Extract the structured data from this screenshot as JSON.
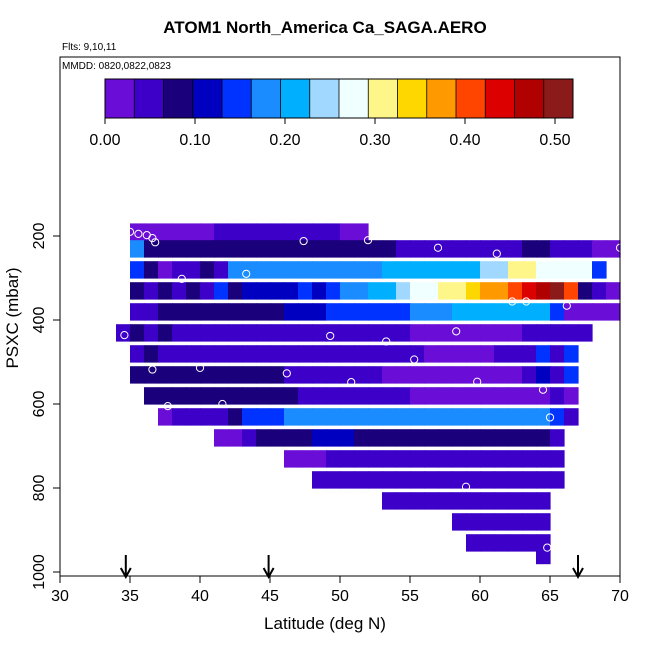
{
  "chart_data": {
    "type": "heatmap",
    "title": "ATOM1 North_America Ca_SAGA.AERO",
    "notes": [
      "Flts: 9,10,11",
      "MMDD: 0820,0822,0823"
    ],
    "xlabel": "Latitude (deg N)",
    "ylabel": "PSXC (mbar)",
    "xlim": [
      30,
      70
    ],
    "ylim": [
      1000,
      0
    ],
    "xticks": [
      30,
      35,
      40,
      45,
      50,
      55,
      60,
      65,
      70
    ],
    "yticks": [
      200,
      400,
      600,
      800,
      1000
    ],
    "colorbar": {
      "range": [
        0,
        0.52
      ],
      "ticks": [
        0.0,
        0.1,
        0.2,
        0.3,
        0.4,
        0.5
      ],
      "tick_labels": [
        "0.00",
        "0.10",
        "0.20",
        "0.30",
        "0.40",
        "0.50"
      ],
      "colors": [
        "#6a0dd6",
        "#3d00c8",
        "#1a007a",
        "#0000c0",
        "#0033ff",
        "#1a8cff",
        "#00b0ff",
        "#a0d8ff",
        "#f0ffff",
        "#fff68a",
        "#ffd700",
        "#ff9900",
        "#ff4500",
        "#dd0000",
        "#b00000",
        "#8b1a1a"
      ]
    },
    "flight_marker_latitudes": [
      34.7,
      44.9,
      67.0
    ],
    "bin": {
      "lat_width": 1.0,
      "p_height": 40
    },
    "rows": [
      {
        "p": 190,
        "lat": [
          35,
          52
        ],
        "v": [
          0.02,
          0.02,
          0.03,
          0.03,
          0.03,
          0.03,
          0.04,
          0.04,
          0.04,
          0.04,
          0.04,
          0.04,
          0.05,
          0.04,
          0.04,
          0.03,
          0.03
        ]
      },
      {
        "p": 230,
        "lat": [
          35,
          70
        ],
        "v": [
          0.17,
          0.07,
          0.07,
          0.07,
          0.07,
          0.07,
          0.07,
          0.07,
          0.07,
          0.07,
          0.07,
          0.07,
          0.07,
          0.07,
          0.07,
          0.07,
          0.07,
          0.07,
          0.07,
          0.06,
          0.06,
          0.06,
          0.06,
          0.06,
          0.06,
          0.06,
          0.06,
          0.06,
          0.07,
          0.07,
          0.06,
          0.05,
          0.04,
          0.03,
          0.03
        ]
      },
      {
        "p": 280,
        "lat": [
          35,
          68
        ],
        "v": [
          0.14,
          0.07,
          0.02,
          0.06,
          0.05,
          0.07,
          0.05,
          0.17,
          0.17,
          0.18,
          0.18,
          0.18,
          0.18,
          0.18,
          0.19,
          0.19,
          0.19,
          0.19,
          0.2,
          0.21,
          0.21,
          0.21,
          0.21,
          0.21,
          0.22,
          0.23,
          0.23,
          0.3,
          0.3,
          0.29,
          0.28,
          0.28,
          0.28,
          0.14
        ]
      },
      {
        "p": 330,
        "lat": [
          35,
          69
        ],
        "v": [
          0.08,
          0.05,
          0.07,
          0.06,
          0.07,
          0.05,
          0.13,
          0.08,
          0.11,
          0.12,
          0.1,
          0.1,
          0.15,
          0.12,
          0.14,
          0.17,
          0.19,
          0.2,
          0.22,
          0.24,
          0.26,
          0.29,
          0.3,
          0.32,
          0.34,
          0.36,
          0.38,
          0.42,
          0.43,
          0.47,
          0.49,
          0.4,
          0.07,
          0.04,
          0.03
        ]
      },
      {
        "p": 380,
        "lat": [
          35,
          69
        ],
        "v": [
          0.06,
          0.06,
          0.07,
          0.07,
          0.07,
          0.07,
          0.07,
          0.07,
          0.07,
          0.08,
          0.08,
          0.1,
          0.1,
          0.12,
          0.13,
          0.13,
          0.14,
          0.15,
          0.15,
          0.16,
          0.17,
          0.18,
          0.19,
          0.2,
          0.2,
          0.2,
          0.2,
          0.2,
          0.2,
          0.2,
          0.16,
          0.02,
          0.03,
          0.02,
          0.03
        ]
      },
      {
        "p": 430,
        "lat": [
          34,
          68
        ],
        "v": [
          0.04,
          0.07,
          0.06,
          0.07,
          0.06,
          0.06,
          0.06,
          0.06,
          0.06,
          0.06,
          0.05,
          0.05,
          0.05,
          0.05,
          0.05,
          0.04,
          0.04,
          0.04,
          0.04,
          0.04,
          0.04,
          0.03,
          0.03,
          0.03,
          0.03,
          0.03,
          0.03,
          0.03,
          0.03,
          0.04,
          0.04,
          0.06,
          0.06,
          0.06
        ]
      },
      {
        "p": 480,
        "lat": [
          35,
          67
        ],
        "v": [
          0.06,
          0.07,
          0.06,
          0.06,
          0.06,
          0.06,
          0.06,
          0.06,
          0.06,
          0.06,
          0.06,
          0.06,
          0.06,
          0.05,
          0.05,
          0.04,
          0.05,
          0.04,
          0.04,
          0.04,
          0.04,
          0.03,
          0.03,
          0.03,
          0.03,
          0.03,
          0.04,
          0.04,
          0.05,
          0.13,
          0.05,
          0.14
        ]
      },
      {
        "p": 530,
        "lat": [
          35,
          67
        ],
        "v": [
          0.08,
          0.08,
          0.08,
          0.07,
          0.07,
          0.07,
          0.07,
          0.07,
          0.07,
          0.07,
          0.07,
          0.06,
          0.06,
          0.06,
          0.05,
          0.05,
          0.06,
          0.04,
          0.03,
          0.03,
          0.03,
          0.03,
          0.03,
          0.03,
          0.03,
          0.03,
          0.03,
          0.03,
          0.04,
          0.11,
          0.06,
          0.14
        ]
      },
      {
        "p": 580,
        "lat": [
          36,
          67
        ],
        "v": [
          0.07,
          0.08,
          0.08,
          0.08,
          0.07,
          0.07,
          0.07,
          0.07,
          0.07,
          0.07,
          0.07,
          0.06,
          0.06,
          0.05,
          0.05,
          0.05,
          0.04,
          0.04,
          0.04,
          0.03,
          0.03,
          0.03,
          0.03,
          0.03,
          0.03,
          0.03,
          0.03,
          0.03,
          0.03,
          0.06,
          0.03
        ]
      },
      {
        "p": 630,
        "lat": [
          37,
          67
        ],
        "v": [
          0.03,
          0.06,
          0.06,
          0.06,
          0.06,
          0.07,
          0.15,
          0.16,
          0.16,
          0.17,
          0.17,
          0.18,
          0.18,
          0.18,
          0.18,
          0.18,
          0.18,
          0.18,
          0.18,
          0.18,
          0.18,
          0.18,
          0.19,
          0.19,
          0.19,
          0.19,
          0.18,
          0.18,
          0.14,
          0.06
        ]
      },
      {
        "p": 680,
        "lat": [
          41,
          66
        ],
        "v": [
          0.02,
          0.03,
          0.05,
          0.07,
          0.09,
          0.08,
          0.08,
          0.1,
          0.11,
          0.1,
          0.09,
          0.09,
          0.08,
          0.08,
          0.08,
          0.08,
          0.08,
          0.08,
          0.08,
          0.07,
          0.07,
          0.07,
          0.07,
          0.07,
          0.06
        ]
      },
      {
        "p": 730,
        "lat": [
          46,
          66
        ],
        "v": [
          0.02,
          0.02,
          0.02,
          0.05,
          0.06,
          0.06,
          0.06,
          0.06,
          0.06,
          0.06,
          0.06,
          0.06,
          0.06,
          0.06,
          0.06,
          0.06,
          0.06,
          0.06,
          0.06,
          0.06
        ]
      },
      {
        "p": 780,
        "lat": [
          48,
          66
        ],
        "v": [
          0.06,
          0.05,
          0.05,
          0.05,
          0.05,
          0.06,
          0.06,
          0.06,
          0.06,
          0.06,
          0.06,
          0.06,
          0.06,
          0.06,
          0.06,
          0.06,
          0.06,
          0.06
        ]
      },
      {
        "p": 830,
        "lat": [
          53,
          65
        ],
        "v": [
          0.06,
          0.06,
          0.05,
          0.06,
          0.06,
          0.06,
          0.05,
          0.06,
          0.06,
          0.06,
          0.06,
          0.06
        ]
      },
      {
        "p": 880,
        "lat": [
          58,
          65
        ],
        "v": [
          0.06,
          0.06,
          0.06,
          0.06,
          0.06,
          0.06,
          0.06
        ]
      },
      {
        "p": 930,
        "lat": [
          59,
          65
        ],
        "v": [
          0.06,
          0.06,
          0.06,
          0.06,
          0.06,
          0.06
        ]
      },
      {
        "p": 960,
        "lat": [
          64,
          65
        ],
        "v": [
          0.06
        ]
      }
    ],
    "samples": [
      [
        35.0,
        190
      ],
      [
        35.6,
        195
      ],
      [
        36.2,
        198
      ],
      [
        36.6,
        205
      ],
      [
        36.8,
        215
      ],
      [
        34.6,
        228
      ],
      [
        47.4,
        212
      ],
      [
        52.0,
        210
      ],
      [
        57.0,
        228
      ],
      [
        61.2,
        242
      ],
      [
        70.0,
        228
      ],
      [
        43.3,
        290
      ],
      [
        38.7,
        302
      ],
      [
        62.3,
        356
      ],
      [
        63.3,
        356
      ],
      [
        66.2,
        366
      ],
      [
        34.6,
        436
      ],
      [
        49.3,
        438
      ],
      [
        53.3,
        451
      ],
      [
        58.3,
        427
      ],
      [
        55.3,
        494
      ],
      [
        40.0,
        514
      ],
      [
        36.6,
        518
      ],
      [
        46.2,
        527
      ],
      [
        50.8,
        548
      ],
      [
        59.8,
        547
      ],
      [
        64.5,
        566
      ],
      [
        37.7,
        605
      ],
      [
        41.6,
        600
      ],
      [
        65.0,
        632
      ],
      [
        59.0,
        797
      ],
      [
        64.8,
        942
      ]
    ]
  }
}
